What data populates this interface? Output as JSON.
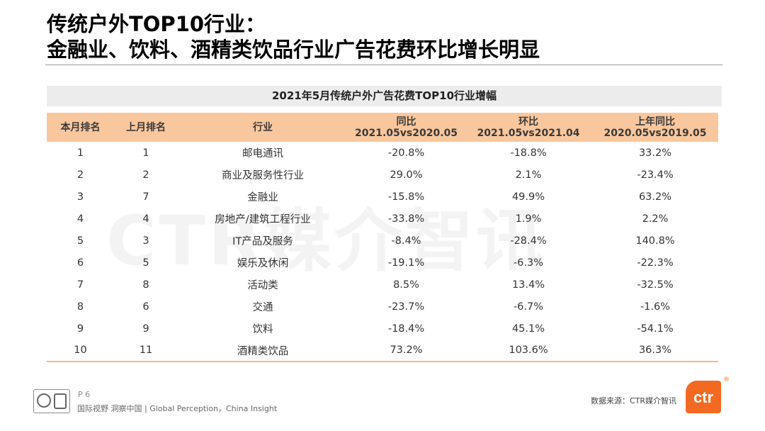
{
  "title": {
    "line1": "传统户外TOP10行业：",
    "line2": "金融业、饮料、酒精类饮品行业广告花费环比增长明显"
  },
  "watermark": "CTR媒介智讯",
  "table": {
    "caption": "2021年5月传统户外广告花费TOP10行业增幅",
    "headers": {
      "rank_this": "本月排名",
      "rank_last": "上月排名",
      "industry": "行业",
      "yoy": "同比",
      "yoy_sub": "2021.05vs2020.05",
      "mom": "环比",
      "mom_sub": "2021.05vs2021.04",
      "last_yoy": "上年同比",
      "last_yoy_sub": "2020.05vs2019.05"
    },
    "rows": [
      {
        "rank_this": "1",
        "rank_last": "1",
        "industry": "邮电通讯",
        "yoy": "-20.8%",
        "mom": "-18.8%",
        "last_yoy": "33.2%"
      },
      {
        "rank_this": "2",
        "rank_last": "2",
        "industry": "商业及服务性行业",
        "yoy": "29.0%",
        "mom": "2.1%",
        "last_yoy": "-23.4%"
      },
      {
        "rank_this": "3",
        "rank_last": "7",
        "industry": "金融业",
        "yoy": "-15.8%",
        "mom": "49.9%",
        "last_yoy": "63.2%"
      },
      {
        "rank_this": "4",
        "rank_last": "4",
        "industry": "房地产/建筑工程行业",
        "yoy": "-33.8%",
        "mom": "1.9%",
        "last_yoy": "2.2%"
      },
      {
        "rank_this": "5",
        "rank_last": "3",
        "industry": "IT产品及服务",
        "yoy": "-8.4%",
        "mom": "-28.4%",
        "last_yoy": "140.8%"
      },
      {
        "rank_this": "6",
        "rank_last": "5",
        "industry": "娱乐及休闲",
        "yoy": "-19.1%",
        "mom": "-6.3%",
        "last_yoy": "-22.3%"
      },
      {
        "rank_this": "7",
        "rank_last": "8",
        "industry": "活动类",
        "yoy": "8.5%",
        "mom": "13.4%",
        "last_yoy": "-32.5%"
      },
      {
        "rank_this": "8",
        "rank_last": "6",
        "industry": "交通",
        "yoy": "-23.7%",
        "mom": "-6.7%",
        "last_yoy": "-1.6%"
      },
      {
        "rank_this": "9",
        "rank_last": "9",
        "industry": "饮料",
        "yoy": "-18.4%",
        "mom": "45.1%",
        "last_yoy": "-54.1%"
      },
      {
        "rank_this": "10",
        "rank_last": "11",
        "industry": "酒精类饮品",
        "yoy": "73.2%",
        "mom": "103.6%",
        "last_yoy": "36.3%"
      }
    ]
  },
  "footer": {
    "page": "P 6",
    "tagline": "国际视野  洞察中国 | Global Perception，China Insight",
    "source": "数据来源：CTR媒介智讯",
    "logo_text": "ctr",
    "reg_mark": "®"
  },
  "colors": {
    "header_bg": "#f9c79d",
    "caption_bg": "#ececec",
    "brand_orange": "#f26a21"
  }
}
